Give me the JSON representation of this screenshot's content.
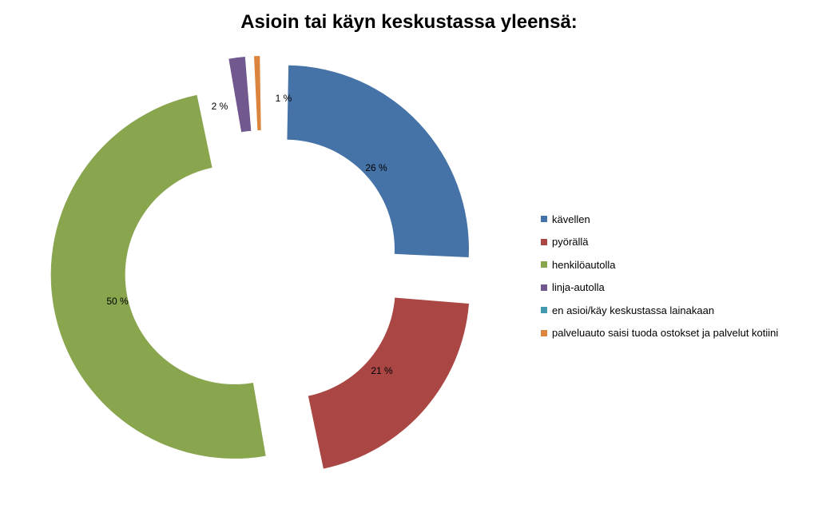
{
  "chart_data": {
    "type": "pie",
    "title": "Asioin tai käyn keskustassa yleensä:",
    "categories": [
      "kävellen",
      "pyörällä",
      "henkilöautolla",
      "linja-autolla",
      "en asioi/käy keskustassa lainakaan",
      "palveluauto saisi tuoda ostokset ja palvelut kotiini"
    ],
    "values": [
      26,
      21,
      50,
      2,
      0,
      1
    ],
    "data_labels": [
      "26 %",
      "21 %",
      "50 %",
      "2 %",
      "",
      "1 %"
    ],
    "colors": [
      "#4572A7",
      "#AA4643",
      "#89A54E",
      "#71588F",
      "#4198AF",
      "#DB843D"
    ],
    "style": "exploded doughnut",
    "legend_position": "right"
  }
}
